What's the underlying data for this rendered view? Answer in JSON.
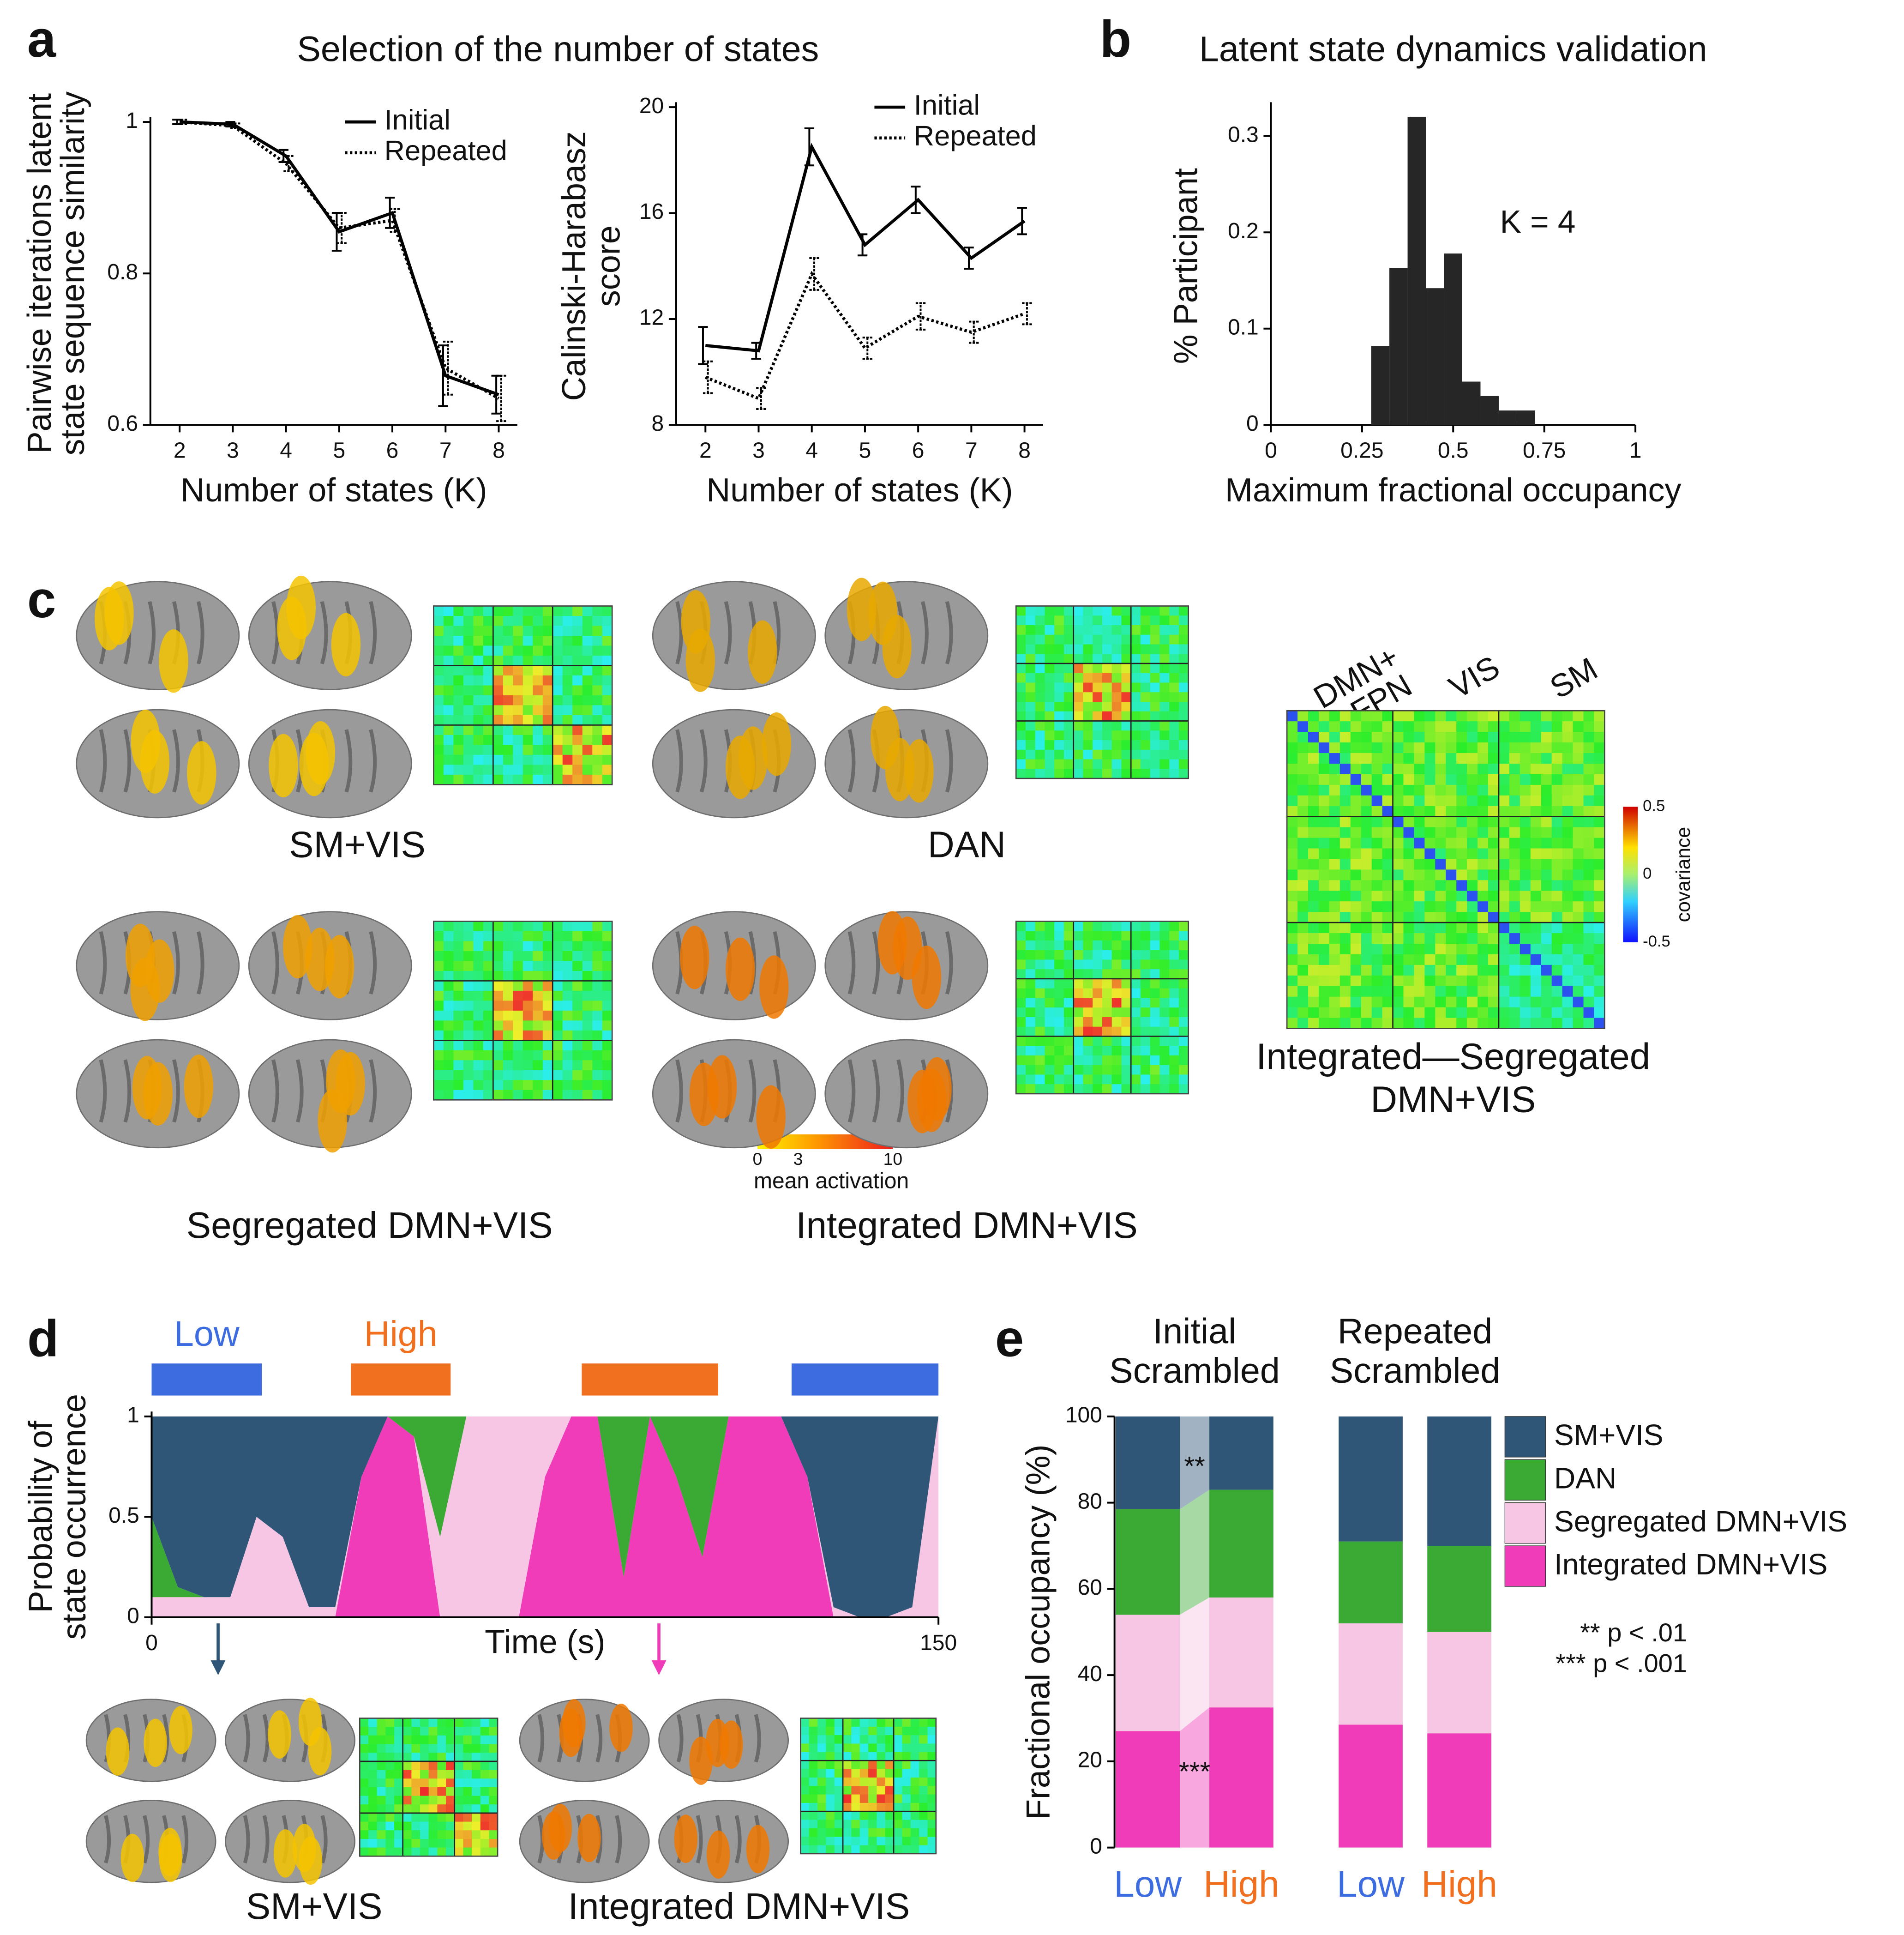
{
  "figure": {
    "panels": [
      "a",
      "b",
      "c",
      "d",
      "e"
    ],
    "title_a": "Selection of the number of states",
    "c": {
      "states": [
        "SM+VIS",
        "DAN",
        "Segregated DMN+VIS",
        "Integrated DMN+VIS"
      ],
      "contrast": [
        "Integrated—Segregated",
        "DMN+VIS"
      ],
      "networks": [
        "DMN+",
        "FPN",
        "VIS",
        "SM"
      ],
      "activation_colorbar": {
        "ticks": [
          0,
          3,
          10
        ],
        "label": "mean activation"
      },
      "covariance_colorbar": {
        "ticks": [
          0.5,
          0,
          -0.5
        ],
        "label": "covariance"
      }
    },
    "d_examples": [
      "SM+VIS",
      "Integrated DMN+VIS"
    ]
  },
  "chart_data": [
    {
      "type": "line",
      "xlabel": "Number of states (K)",
      "ylabel": [
        "Pairwise iterations latent",
        "state sequence similarity"
      ],
      "x": [
        2,
        3,
        4,
        5,
        6,
        7,
        8
      ],
      "xlim": [
        1.45,
        8.35
      ],
      "xticks": [
        2,
        3,
        4,
        5,
        6,
        7,
        8
      ],
      "ylim": [
        0.6,
        1
      ],
      "yticks": [
        0.6,
        0.8,
        1
      ],
      "legend": "upper right",
      "series": [
        {
          "name": "Initial",
          "color": "#000000",
          "dash": "solid",
          "values": [
            1.0,
            0.997,
            0.955,
            0.855,
            0.88,
            0.665,
            0.64
          ],
          "errors": [
            0.003,
            0.003,
            0.008,
            0.025,
            0.02,
            0.04,
            0.025
          ]
        },
        {
          "name": "Repeated",
          "color": "#000000",
          "dash": "dotted",
          "values": [
            1.0,
            0.995,
            0.945,
            0.86,
            0.87,
            0.675,
            0.635
          ],
          "errors": [
            0.003,
            0.003,
            0.01,
            0.02,
            0.015,
            0.035,
            0.03
          ]
        }
      ]
    },
    {
      "type": "line",
      "xlabel": "Number of states (K)",
      "ylabel": [
        "Calinski-Harabasz",
        "score"
      ],
      "x": [
        2,
        3,
        4,
        5,
        6,
        7,
        8
      ],
      "xlim": [
        1.45,
        8.35
      ],
      "xticks": [
        2,
        3,
        4,
        5,
        6,
        7,
        8
      ],
      "ylim": [
        8,
        20
      ],
      "yticks": [
        8,
        12,
        16,
        20
      ],
      "legend": "upper right",
      "series": [
        {
          "name": "Initial",
          "color": "#000000",
          "dash": "solid",
          "values": [
            11.0,
            10.8,
            18.5,
            14.8,
            16.5,
            14.3,
            15.7
          ],
          "errors": [
            0.7,
            0.3,
            0.7,
            0.4,
            0.5,
            0.4,
            0.5
          ]
        },
        {
          "name": "Repeated",
          "color": "#000000",
          "dash": "dotted",
          "values": [
            9.8,
            9.0,
            13.7,
            10.9,
            12.1,
            11.5,
            12.2
          ],
          "errors": [
            0.6,
            0.4,
            0.6,
            0.4,
            0.5,
            0.4,
            0.4
          ]
        }
      ]
    },
    {
      "type": "histogram",
      "title": "Latent state dynamics validation",
      "xlabel": "Maximum fractional occupancy",
      "ylabel": "% Participant",
      "annotation": "K = 4",
      "color": "#262626",
      "bins": [
        0.275,
        0.325,
        0.375,
        0.425,
        0.475,
        0.525,
        0.575,
        0.625,
        0.675,
        0.725
      ],
      "values": [
        0.082,
        0.163,
        0.32,
        0.142,
        0.178,
        0.045,
        0.03,
        0.015,
        0.015
      ],
      "xlim": [
        0,
        1
      ],
      "xticks": [
        0,
        0.25,
        0.5,
        0.75,
        1
      ],
      "ylim": [
        0,
        0.33
      ],
      "yticks": [
        0,
        0.1,
        0.2,
        0.3
      ]
    },
    {
      "type": "area",
      "stacked": true,
      "xlabel": "Time (s)",
      "ylabel": [
        "Probability of",
        "state occurrence"
      ],
      "x": [
        0,
        5,
        10,
        15,
        20,
        25,
        30,
        35,
        40,
        45,
        50,
        55,
        60,
        65,
        70,
        75,
        80,
        85,
        90,
        95,
        100,
        105,
        110,
        115,
        120,
        125,
        130,
        135,
        140,
        145,
        150
      ],
      "xlim": [
        0,
        150
      ],
      "xticks": [
        0,
        150
      ],
      "ylim": [
        0,
        1
      ],
      "yticks": [
        0,
        0.5,
        1
      ],
      "periods": [
        {
          "label": "Low",
          "start": 0,
          "end": 21,
          "color": "#3d6be0"
        },
        {
          "label": "High",
          "start": 38,
          "end": 57,
          "color": "#f07020"
        },
        {
          "start": 82,
          "end": 108,
          "color": "#f07020"
        },
        {
          "start": 122,
          "end": 150,
          "color": "#3d6be0"
        }
      ],
      "series": [
        {
          "name": "SM+VIS",
          "color": "#2f5577",
          "values": [
            0.5,
            0.85,
            0.9,
            0.9,
            0.5,
            0.6,
            0.95,
            0.95,
            0.3,
            0,
            0,
            0,
            0,
            0,
            0,
            0,
            0,
            0,
            0,
            0,
            0,
            0,
            0,
            0,
            0,
            0.3,
            0.95,
            1,
            1,
            0.95,
            0
          ]
        },
        {
          "name": "DAN",
          "color": "#3aaa35",
          "values": [
            0.4,
            0.05,
            0,
            0,
            0,
            0,
            0,
            0,
            0,
            0,
            0.1,
            0.6,
            0,
            0,
            0,
            0,
            0,
            0,
            0.8,
            0,
            0.3,
            0.7,
            0,
            0,
            0,
            0,
            0,
            0,
            0,
            0,
            0
          ]
        },
        {
          "name": "Segregated DMN+VIS",
          "color": "#f7c6e4",
          "values": [
            0.1,
            0.1,
            0.1,
            0.1,
            0.5,
            0.4,
            0.05,
            0.05,
            0,
            0,
            0,
            0.4,
            1,
            1,
            1,
            0.3,
            0,
            0,
            0,
            0,
            0,
            0,
            0,
            0,
            0,
            0,
            0.05,
            0,
            0,
            0.05,
            1
          ]
        },
        {
          "name": "Integrated DMN+VIS",
          "color": "#f03cb8",
          "values": [
            0,
            0,
            0,
            0,
            0,
            0,
            0,
            0,
            0.7,
            1,
            0.9,
            0,
            0,
            0,
            0,
            0.7,
            1,
            1,
            0.2,
            1,
            0.7,
            0.3,
            1,
            1,
            1,
            0.7,
            0,
            0,
            0,
            0,
            0
          ]
        }
      ]
    },
    {
      "type": "bar",
      "stacked": true,
      "ylabel": "Fractional occupancy (%)",
      "categories": [
        "Low",
        "High",
        "Low",
        "High"
      ],
      "category_colors": [
        "#3d6be0",
        "#f07020",
        "#3d6be0",
        "#f07020"
      ],
      "groups": [
        [
          "Initial",
          "Scrambled"
        ],
        [
          "Repeated",
          "Scrambled"
        ]
      ],
      "ylim": [
        0,
        100
      ],
      "yticks": [
        0,
        20,
        40,
        60,
        80,
        100
      ],
      "legend": "right",
      "significance": [
        "**",
        "***"
      ],
      "notes": [
        "** p < .01",
        "*** p < .001"
      ],
      "series": [
        {
          "name": "SM+VIS",
          "color": "#2f5577",
          "values": [
            21.5,
            17,
            29,
            30
          ]
        },
        {
          "name": "DAN",
          "color": "#3aaa35",
          "values": [
            24.5,
            25,
            19,
            20
          ]
        },
        {
          "name": "Segregated DMN+VIS",
          "color": "#f7c6e4",
          "values": [
            27,
            25.5,
            23.5,
            23.5
          ]
        },
        {
          "name": "Integrated DMN+VIS",
          "color": "#f03cb8",
          "values": [
            27,
            32.5,
            28.5,
            26.5
          ]
        }
      ]
    }
  ]
}
